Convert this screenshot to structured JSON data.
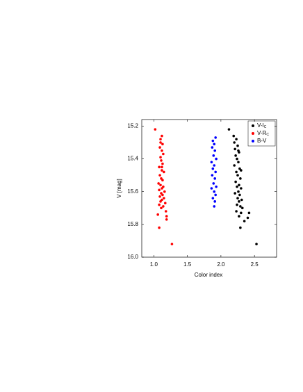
{
  "chart_data": {
    "type": "scatter",
    "xlabel": "Color index",
    "ylabel": "V [mag]",
    "xlim": [
      0.82,
      2.83
    ],
    "ylim": [
      15.16,
      16.0
    ],
    "y_inverted": true,
    "grid": false,
    "legend": "upper right",
    "xticks": [
      {
        "value": 1,
        "label": "1.0"
      },
      1.5,
      {
        "value": 2,
        "label": "2.0"
      },
      2.5
    ],
    "yticks": [
      15.2,
      15.4,
      15.6,
      15.8,
      {
        "value": 16,
        "label": "16.0"
      }
    ],
    "series": [
      {
        "name": "V-I_C",
        "color": "#000000",
        "x": [
          2.12,
          2.19,
          2.23,
          2.2,
          2.25,
          2.21,
          2.27,
          2.22,
          2.24,
          2.26,
          2.2,
          2.28,
          2.23,
          2.25,
          2.29,
          2.22,
          2.27,
          2.24,
          2.3,
          2.26,
          2.21,
          2.28,
          2.25,
          2.31,
          2.27,
          2.24,
          2.29,
          2.32,
          2.23,
          2.3,
          2.42,
          2.27,
          2.4,
          2.35,
          2.29,
          2.53,
          2.3,
          2.26
        ],
        "values": [
          15.22,
          15.26,
          15.28,
          15.3,
          15.32,
          15.34,
          15.36,
          15.38,
          15.4,
          15.42,
          15.44,
          15.46,
          15.48,
          15.5,
          15.52,
          15.54,
          15.56,
          15.57,
          15.58,
          15.6,
          15.61,
          15.62,
          15.64,
          15.65,
          15.66,
          15.68,
          15.69,
          15.7,
          15.72,
          15.73,
          15.73,
          15.75,
          15.76,
          15.78,
          15.82,
          15.92,
          15.47,
          15.35
        ]
      },
      {
        "name": "V-R_C",
        "color": "#ff0000",
        "x": [
          1.02,
          1.12,
          1.1,
          1.13,
          1.09,
          1.12,
          1.14,
          1.1,
          1.11,
          1.13,
          1.08,
          1.12,
          1.15,
          1.09,
          1.11,
          1.13,
          1.07,
          1.1,
          1.14,
          1.12,
          1.08,
          1.16,
          1.11,
          1.13,
          1.09,
          1.15,
          1.12,
          1.1,
          1.17,
          1.08,
          1.14,
          1.11,
          1.18,
          1.06,
          1.19,
          1.19,
          1.08,
          1.27,
          1.12,
          1.1
        ],
        "values": [
          15.22,
          15.26,
          15.28,
          15.31,
          15.33,
          15.35,
          15.37,
          15.39,
          15.41,
          15.43,
          15.45,
          15.47,
          15.48,
          15.5,
          15.52,
          15.53,
          15.55,
          15.56,
          15.57,
          15.58,
          15.59,
          15.6,
          15.61,
          15.62,
          15.63,
          15.64,
          15.65,
          15.66,
          15.67,
          15.68,
          15.69,
          15.7,
          15.72,
          15.74,
          15.75,
          15.77,
          15.82,
          15.92,
          15.45,
          15.3
        ]
      },
      {
        "name": "B-V",
        "color": "#0000ff",
        "x": [
          1.92,
          1.88,
          1.9,
          1.87,
          1.91,
          1.89,
          1.93,
          1.86,
          1.9,
          1.88,
          1.92,
          1.87,
          1.91,
          1.89,
          1.93,
          1.86,
          1.9,
          1.92,
          1.88,
          1.91,
          1.9
        ],
        "values": [
          15.27,
          15.29,
          15.31,
          15.33,
          15.35,
          15.38,
          15.4,
          15.42,
          15.44,
          15.46,
          15.48,
          15.5,
          15.52,
          15.55,
          15.57,
          15.58,
          15.6,
          15.62,
          15.64,
          15.66,
          15.69
        ]
      }
    ]
  }
}
